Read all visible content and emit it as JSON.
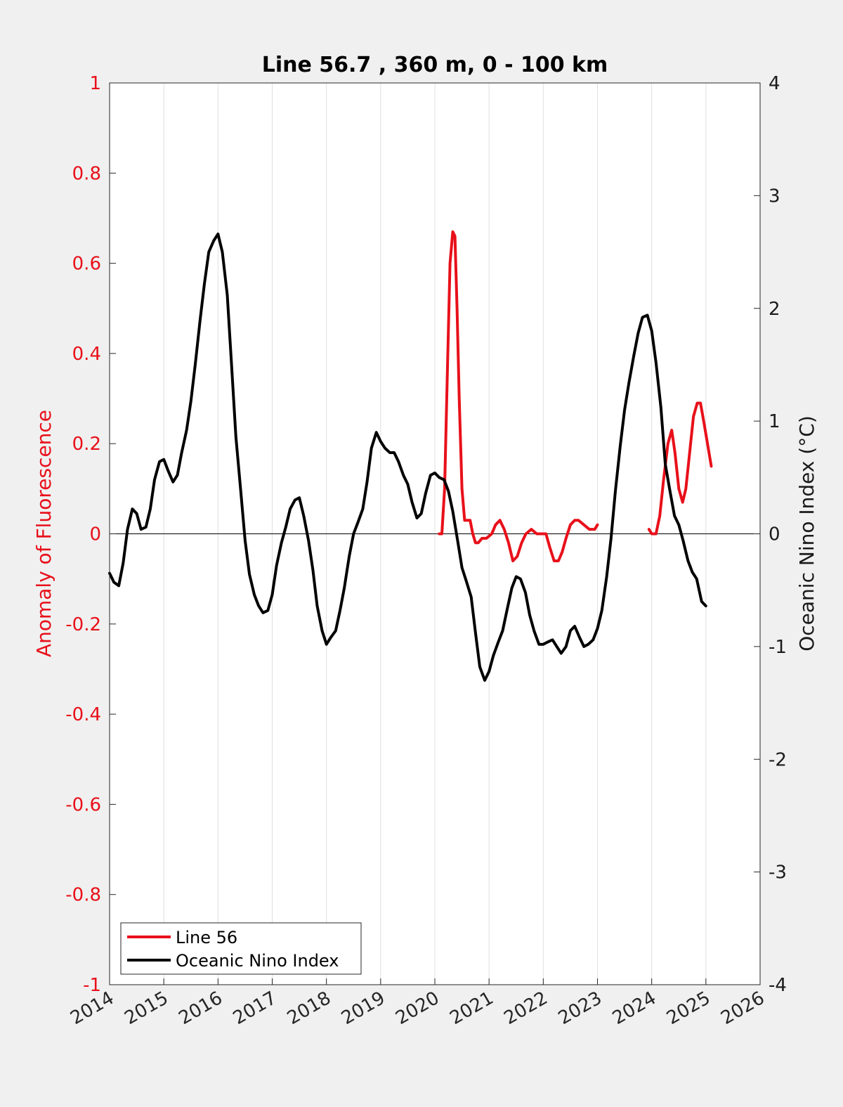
{
  "chart_data": {
    "type": "line",
    "title": "Line 56.7 , 360 m, 0 - 100 km",
    "xlabel": "",
    "ylabel_left": "Anomaly of Fluorescence",
    "ylabel_right": "Oceanic Nino Index (°C)",
    "xlim": [
      2014,
      2026
    ],
    "ylim_left": [
      -1,
      1
    ],
    "ylim_right": [
      -4,
      4
    ],
    "x_ticks": [
      2014,
      2015,
      2016,
      2017,
      2018,
      2019,
      2020,
      2021,
      2022,
      2023,
      2024,
      2025,
      2026
    ],
    "x_tick_labels": [
      "2014",
      "2015",
      "2016",
      "2017",
      "2018",
      "2019",
      "2020",
      "2021",
      "2022",
      "2023",
      "2024",
      "2025",
      "2026"
    ],
    "y_left_ticks": [
      -1,
      -0.8,
      -0.6,
      -0.4,
      -0.2,
      0,
      0.2,
      0.4,
      0.6,
      0.8,
      1
    ],
    "y_left_tick_labels": [
      "-1",
      "-0.8",
      "-0.6",
      "-0.4",
      "-0.2",
      "0",
      "0.2",
      "0.4",
      "0.6",
      "0.8",
      "1"
    ],
    "y_right_ticks": [
      -4,
      -3,
      -2,
      -1,
      0,
      1,
      2,
      3,
      4
    ],
    "y_right_tick_labels": [
      "-4",
      "-3",
      "-2",
      "-1",
      "0",
      "1",
      "2",
      "3",
      "4"
    ],
    "grid": "vertical",
    "legend_position": "bottom-left",
    "colors": {
      "line56": "#e8101a",
      "oni": "#000000",
      "left_axis": "#e8101a",
      "right_axis": "#1a1a1a",
      "grid": "#e0e0e0",
      "plot_bg": "#ffffff",
      "figure_bg": "#f0f0f0"
    },
    "series": [
      {
        "name": "Line 56",
        "axis": "left",
        "segments": [
          {
            "x": [
              2020.08,
              2020.13,
              2020.18,
              2020.23,
              2020.28,
              2020.33,
              2020.37,
              2020.41,
              2020.45,
              2020.5,
              2020.55,
              2020.6,
              2020.65,
              2020.7,
              2020.75,
              2020.8,
              2020.87,
              2020.95,
              2021.05,
              2021.12,
              2021.2,
              2021.28,
              2021.36,
              2021.44,
              2021.52,
              2021.6,
              2021.68,
              2021.78,
              2021.88,
              2021.98,
              2022.05,
              2022.12,
              2022.2,
              2022.28,
              2022.35,
              2022.42,
              2022.5,
              2022.58,
              2022.65,
              2022.75,
              2022.85,
              2022.95,
              2023.0
            ],
            "y": [
              0.0,
              0.0,
              0.1,
              0.35,
              0.6,
              0.67,
              0.66,
              0.5,
              0.3,
              0.1,
              0.03,
              0.03,
              0.03,
              0.0,
              -0.02,
              -0.02,
              -0.01,
              -0.01,
              0.0,
              0.02,
              0.03,
              0.01,
              -0.02,
              -0.06,
              -0.05,
              -0.02,
              0.0,
              0.01,
              0.0,
              0.0,
              0.0,
              -0.03,
              -0.06,
              -0.06,
              -0.04,
              -0.01,
              0.02,
              0.03,
              0.03,
              0.02,
              0.01,
              0.01,
              0.02
            ]
          },
          {
            "x": [
              2023.95,
              2024.0,
              2024.08,
              2024.15,
              2024.22,
              2024.3,
              2024.37,
              2024.43,
              2024.5,
              2024.57,
              2024.63,
              2024.7,
              2024.77,
              2024.84,
              2024.9,
              2024.96,
              2025.03,
              2025.1
            ],
            "y": [
              0.01,
              0.0,
              0.0,
              0.04,
              0.12,
              0.2,
              0.23,
              0.18,
              0.1,
              0.07,
              0.1,
              0.18,
              0.26,
              0.29,
              0.29,
              0.25,
              0.2,
              0.15
            ]
          }
        ]
      },
      {
        "name": "Oceanic Nino Index",
        "axis": "right",
        "segments": [
          {
            "x": [
              2014.0,
              2014.08,
              2014.17,
              2014.25,
              2014.33,
              2014.42,
              2014.5,
              2014.58,
              2014.67,
              2014.75,
              2014.83,
              2014.92,
              2015.0,
              2015.08,
              2015.17,
              2015.25,
              2015.33,
              2015.42,
              2015.5,
              2015.58,
              2015.67,
              2015.75,
              2015.83,
              2015.92,
              2016.0,
              2016.08,
              2016.17,
              2016.25,
              2016.33,
              2016.42,
              2016.5,
              2016.58,
              2016.67,
              2016.75,
              2016.83,
              2016.92,
              2017.0,
              2017.08,
              2017.17,
              2017.25,
              2017.33,
              2017.42,
              2017.5,
              2017.58,
              2017.67,
              2017.75,
              2017.83,
              2017.92,
              2018.0,
              2018.08,
              2018.17,
              2018.25,
              2018.33,
              2018.42,
              2018.5,
              2018.58,
              2018.67,
              2018.75,
              2018.83,
              2018.92,
              2019.0,
              2019.08,
              2019.17,
              2019.25,
              2019.33,
              2019.42,
              2019.5,
              2019.58,
              2019.67,
              2019.75,
              2019.83,
              2019.92,
              2020.0,
              2020.08,
              2020.17,
              2020.25,
              2020.33,
              2020.42,
              2020.5,
              2020.58,
              2020.67,
              2020.75,
              2020.83,
              2020.92,
              2021.0,
              2021.08,
              2021.17,
              2021.25,
              2021.33,
              2021.42,
              2021.5,
              2021.58,
              2021.67,
              2021.75,
              2021.83,
              2021.92,
              2022.0,
              2022.08,
              2022.17,
              2022.25,
              2022.33,
              2022.42,
              2022.5,
              2022.58,
              2022.67,
              2022.75,
              2022.83,
              2022.92,
              2023.0,
              2023.08,
              2023.17,
              2023.25,
              2023.33,
              2023.42,
              2023.5,
              2023.58,
              2023.67,
              2023.75,
              2023.83,
              2023.92,
              2024.0,
              2024.08,
              2024.17,
              2024.25,
              2024.33,
              2024.42,
              2024.5,
              2024.58,
              2024.67,
              2024.75,
              2024.83,
              2024.92,
              2025.0
            ],
            "y": [
              -0.35,
              -0.43,
              -0.46,
              -0.26,
              0.04,
              0.22,
              0.18,
              0.04,
              0.06,
              0.22,
              0.48,
              0.64,
              0.66,
              0.56,
              0.46,
              0.52,
              0.72,
              0.92,
              1.18,
              1.5,
              1.9,
              2.22,
              2.5,
              2.6,
              2.66,
              2.5,
              2.12,
              1.5,
              0.86,
              0.38,
              -0.06,
              -0.36,
              -0.54,
              -0.64,
              -0.7,
              -0.68,
              -0.54,
              -0.28,
              -0.08,
              0.06,
              0.22,
              0.3,
              0.32,
              0.16,
              -0.06,
              -0.32,
              -0.64,
              -0.86,
              -0.98,
              -0.92,
              -0.86,
              -0.68,
              -0.48,
              -0.2,
              0.0,
              0.1,
              0.22,
              0.46,
              0.76,
              0.9,
              0.82,
              0.76,
              0.72,
              0.72,
              0.64,
              0.52,
              0.44,
              0.28,
              0.14,
              0.18,
              0.36,
              0.52,
              0.54,
              0.5,
              0.48,
              0.38,
              0.2,
              -0.06,
              -0.3,
              -0.42,
              -0.56,
              -0.88,
              -1.18,
              -1.3,
              -1.22,
              -1.08,
              -0.96,
              -0.86,
              -0.68,
              -0.48,
              -0.38,
              -0.4,
              -0.52,
              -0.72,
              -0.86,
              -0.98,
              -0.98,
              -0.96,
              -0.94,
              -1.0,
              -1.06,
              -1.0,
              -0.86,
              -0.82,
              -0.92,
              -1.0,
              -0.98,
              -0.94,
              -0.84,
              -0.68,
              -0.38,
              -0.04,
              0.38,
              0.78,
              1.1,
              1.34,
              1.58,
              1.78,
              1.92,
              1.94,
              1.8,
              1.52,
              1.12,
              0.62,
              0.4,
              0.16,
              0.08,
              -0.06,
              -0.24,
              -0.34,
              -0.4,
              -0.6,
              -0.64
            ]
          }
        ]
      }
    ]
  }
}
